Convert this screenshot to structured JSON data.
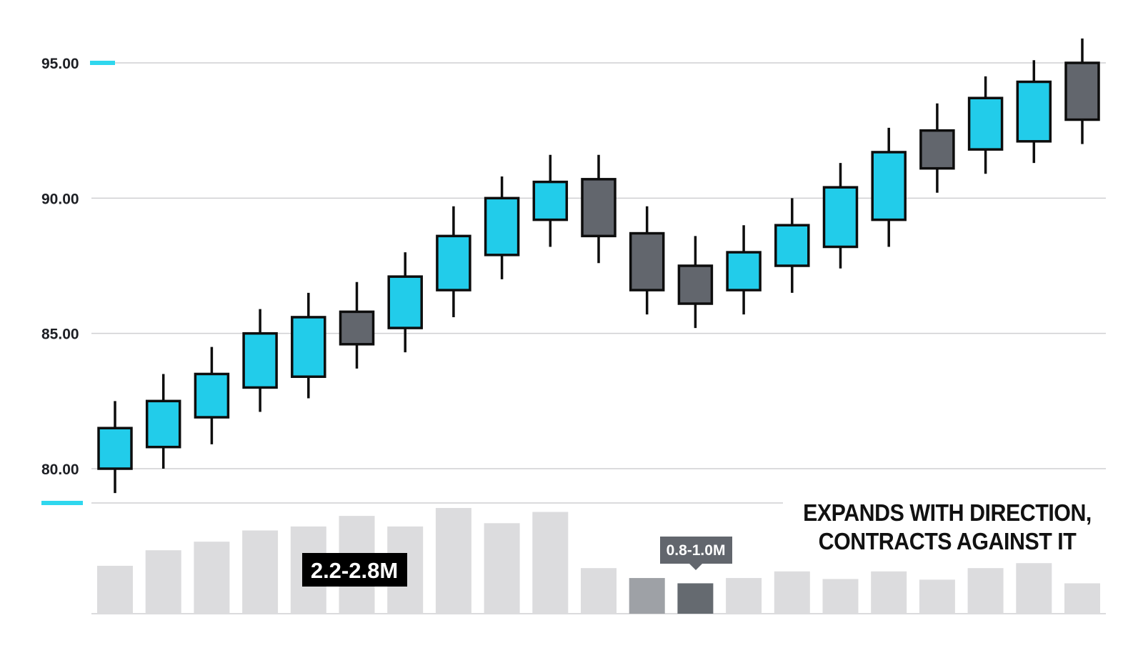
{
  "chart_data": {
    "type": "candlestick",
    "title": "",
    "xlabel": "",
    "ylabel": "",
    "ylim": [
      78.5,
      96.8
    ],
    "y_ticks": [
      "95.00",
      "90.00",
      "85.00",
      "80.00"
    ],
    "grid": true,
    "colors": {
      "up": "#22ccea",
      "down": "#62666d",
      "outline": "#0d0d0d",
      "accent": "#2fd7ee",
      "volume": "#dcdcde"
    },
    "candles": [
      {
        "open": 80.0,
        "high": 82.5,
        "low": 79.1,
        "close": 81.5,
        "direction": "up"
      },
      {
        "open": 80.8,
        "high": 83.5,
        "low": 80.0,
        "close": 82.5,
        "direction": "up"
      },
      {
        "open": 81.9,
        "high": 84.5,
        "low": 80.9,
        "close": 83.5,
        "direction": "up"
      },
      {
        "open": 83.0,
        "high": 85.9,
        "low": 82.1,
        "close": 85.0,
        "direction": "up"
      },
      {
        "open": 83.4,
        "high": 86.5,
        "low": 82.6,
        "close": 85.6,
        "direction": "up"
      },
      {
        "open": 85.8,
        "high": 86.9,
        "low": 83.7,
        "close": 84.6,
        "direction": "down"
      },
      {
        "open": 85.2,
        "high": 88.0,
        "low": 84.3,
        "close": 87.1,
        "direction": "up"
      },
      {
        "open": 86.6,
        "high": 89.7,
        "low": 85.6,
        "close": 88.6,
        "direction": "up"
      },
      {
        "open": 87.9,
        "high": 90.8,
        "low": 87.0,
        "close": 90.0,
        "direction": "up"
      },
      {
        "open": 89.2,
        "high": 91.6,
        "low": 88.2,
        "close": 90.6,
        "direction": "up"
      },
      {
        "open": 90.7,
        "high": 91.6,
        "low": 87.6,
        "close": 88.6,
        "direction": "down"
      },
      {
        "open": 88.7,
        "high": 89.7,
        "low": 85.7,
        "close": 86.6,
        "direction": "down"
      },
      {
        "open": 87.5,
        "high": 88.6,
        "low": 85.2,
        "close": 86.1,
        "direction": "down"
      },
      {
        "open": 86.6,
        "high": 89.0,
        "low": 85.7,
        "close": 88.0,
        "direction": "up"
      },
      {
        "open": 87.5,
        "high": 90.0,
        "low": 86.5,
        "close": 89.0,
        "direction": "up"
      },
      {
        "open": 88.2,
        "high": 91.3,
        "low": 87.4,
        "close": 90.4,
        "direction": "up"
      },
      {
        "open": 89.2,
        "high": 92.6,
        "low": 88.2,
        "close": 91.7,
        "direction": "up"
      },
      {
        "open": 92.5,
        "high": 93.5,
        "low": 90.2,
        "close": 91.1,
        "direction": "down"
      },
      {
        "open": 91.8,
        "high": 94.5,
        "low": 90.9,
        "close": 93.7,
        "direction": "up"
      },
      {
        "open": 92.1,
        "high": 95.1,
        "low": 91.3,
        "close": 94.3,
        "direction": "up"
      },
      {
        "open": 95.0,
        "high": 95.9,
        "low": 92.0,
        "close": 92.9,
        "direction": "down"
      }
    ],
    "volume": {
      "values": [
        1.45,
        1.92,
        2.18,
        2.52,
        2.64,
        2.96,
        2.64,
        3.2,
        2.74,
        3.08,
        1.38,
        1.08,
        0.92,
        1.08,
        1.28,
        1.05,
        1.28,
        1.03,
        1.38,
        1.53,
        0.92
      ],
      "highlighted_down_bars": [
        11,
        12
      ]
    },
    "annotations": {
      "caption_line1": "EXPANDS WITH DIRECTION,",
      "caption_line2": "CONTRACTS AGAINST IT",
      "volume_label_up": "2.2-2.8M",
      "volume_label_down": "0.8-1.0M"
    }
  }
}
